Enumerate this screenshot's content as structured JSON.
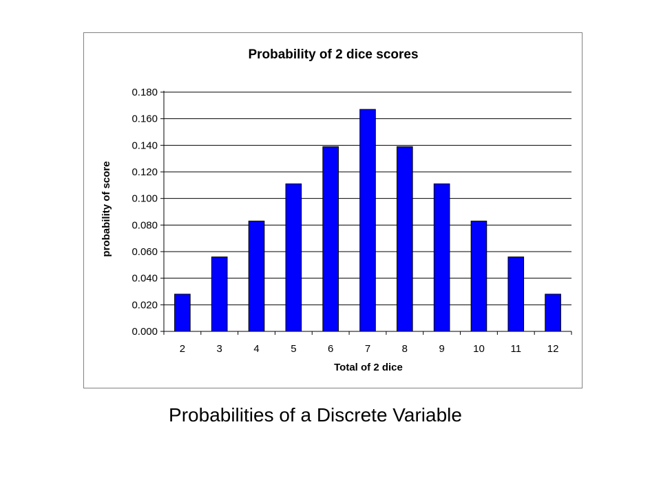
{
  "caption": "Probabilities of a Discrete Variable",
  "chart_data": {
    "type": "bar",
    "title": "Probability of 2 dice scores",
    "xlabel": "Total of 2 dice",
    "ylabel": "probability of score",
    "categories": [
      "2",
      "3",
      "4",
      "5",
      "6",
      "7",
      "8",
      "9",
      "10",
      "11",
      "12"
    ],
    "values": [
      0.028,
      0.056,
      0.083,
      0.111,
      0.139,
      0.167,
      0.139,
      0.111,
      0.083,
      0.056,
      0.028
    ],
    "ylim": [
      0,
      0.18
    ],
    "yticks": [
      "0.000",
      "0.020",
      "0.040",
      "0.060",
      "0.080",
      "0.100",
      "0.120",
      "0.140",
      "0.160",
      "0.180"
    ],
    "grid": true,
    "legend": "none",
    "bar_color": "#0000FF",
    "bar_outline": "#000000"
  }
}
